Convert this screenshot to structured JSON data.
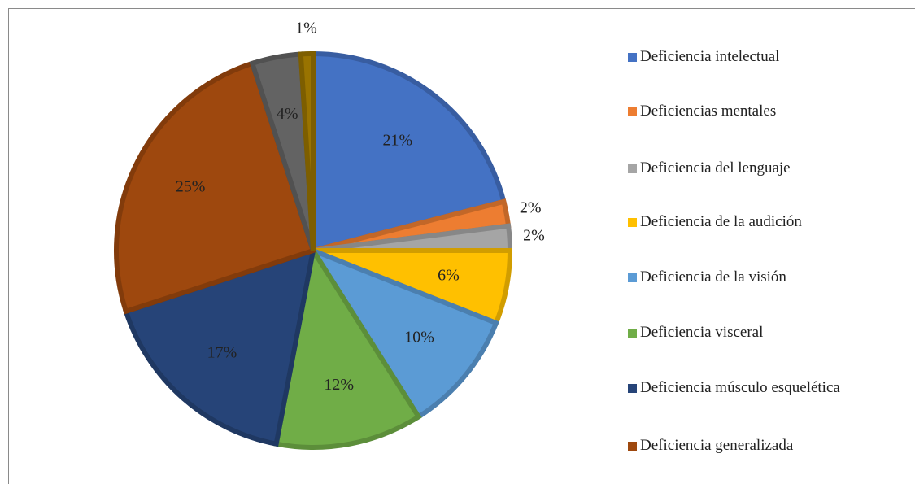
{
  "chart_data": {
    "type": "pie",
    "categories": [
      "Deficiencia intelectual",
      "Deficiencias mentales",
      "Deficiencia del lenguaje",
      "Deficiencia de la audición",
      "Deficiencia de la visión",
      "Deficiencia visceral",
      "Deficiencia músculo esquelética",
      "Deficiencia generalizada",
      null,
      null
    ],
    "values": [
      21,
      2,
      2,
      6,
      10,
      12,
      17,
      25,
      4,
      1
    ],
    "value_labels": [
      "21%",
      "2%",
      "2%",
      "6%",
      "10%",
      "12%",
      "17%",
      "25%",
      "4%",
      "1%"
    ],
    "colors": [
      "#4472c4",
      "#ed7d31",
      "#a5a5a5",
      "#ffc000",
      "#5b9bd5",
      "#70ad47",
      "#264478",
      "#9e480e",
      "#636363",
      "#997300"
    ],
    "legend": "right"
  }
}
